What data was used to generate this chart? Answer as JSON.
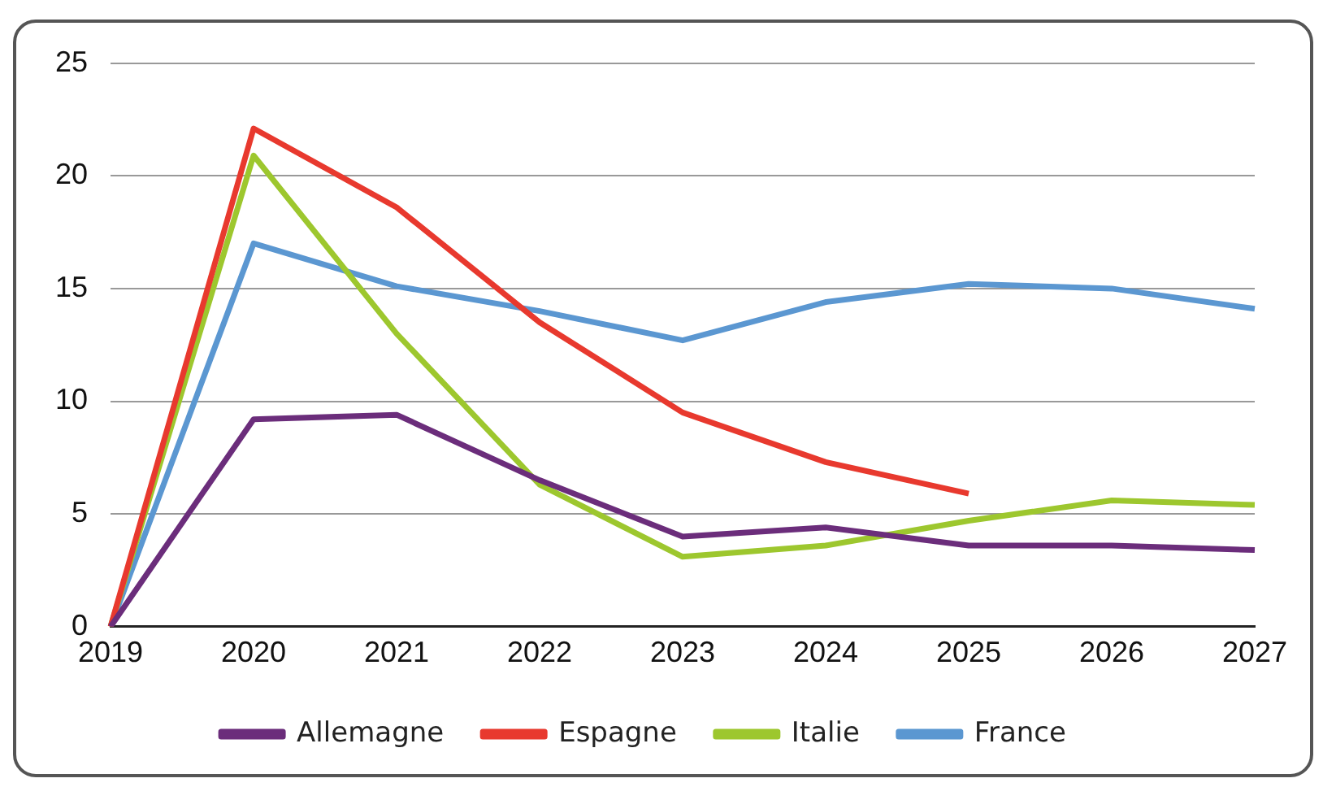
{
  "chart_data": {
    "type": "line",
    "categories": [
      "2019",
      "2020",
      "2021",
      "2022",
      "2023",
      "2024",
      "2025",
      "2026",
      "2027"
    ],
    "series": [
      {
        "name": "Allemagne",
        "color": "#6b2d7b",
        "values": [
          0,
          9.2,
          9.4,
          6.5,
          4.0,
          4.4,
          3.6,
          3.6,
          3.4
        ]
      },
      {
        "name": "Espagne",
        "color": "#e8392e",
        "values": [
          0,
          22.1,
          18.6,
          13.5,
          9.5,
          7.3,
          5.9,
          null,
          null
        ]
      },
      {
        "name": "Italie",
        "color": "#9dc72e",
        "values": [
          0,
          20.9,
          13.0,
          6.3,
          3.1,
          3.6,
          4.7,
          5.6,
          5.4
        ]
      },
      {
        "name": "France",
        "color": "#5b97d1",
        "values": [
          0,
          17.0,
          15.1,
          14.0,
          12.7,
          14.4,
          15.2,
          15.0,
          14.1
        ]
      }
    ],
    "ylim": [
      0,
      25
    ],
    "yticks": [
      0,
      5,
      10,
      15,
      20,
      25
    ],
    "grid": "y",
    "legend": "bottom",
    "marker": "none",
    "line_style": "solid"
  }
}
